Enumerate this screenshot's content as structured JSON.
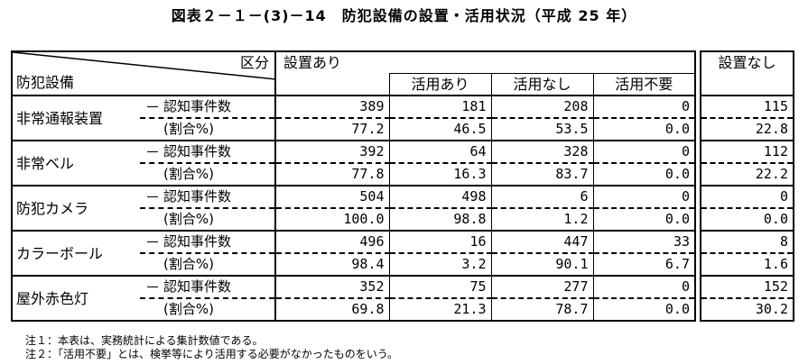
{
  "title": "図表２－１－(3)－14　防犯設備の設置・活用状況（平成 25 年）",
  "header": {
    "kubun": "区分",
    "equipment": "防犯設備",
    "installed": "設置あり",
    "used": "活用あり",
    "not_used": "活用なし",
    "unneeded": "活用不要",
    "not_installed": "設置なし"
  },
  "sub_labels": {
    "count": "認知事件数",
    "ratio": "(割合%)"
  },
  "rows": [
    {
      "name": "非常通報装置",
      "count": [
        "389",
        "181",
        "208",
        "0",
        "115"
      ],
      "ratio": [
        "77.2",
        "46.5",
        "53.5",
        "0.0",
        "22.8"
      ]
    },
    {
      "name": "非常ベル",
      "count": [
        "392",
        "64",
        "328",
        "0",
        "112"
      ],
      "ratio": [
        "77.8",
        "16.3",
        "83.7",
        "0.0",
        "22.2"
      ]
    },
    {
      "name": "防犯カメラ",
      "count": [
        "504",
        "498",
        "6",
        "0",
        "0"
      ],
      "ratio": [
        "100.0",
        "98.8",
        "1.2",
        "0.0",
        "0.0"
      ]
    },
    {
      "name": "カラーボール",
      "count": [
        "496",
        "16",
        "447",
        "33",
        "8"
      ],
      "ratio": [
        "98.4",
        "3.2",
        "90.1",
        "6.7",
        "1.6"
      ]
    },
    {
      "name": "屋外赤色灯",
      "count": [
        "352",
        "75",
        "277",
        "0",
        "152"
      ],
      "ratio": [
        "69.8",
        "21.3",
        "78.7",
        "0.0",
        "30.2"
      ]
    }
  ],
  "notes": [
    "注１：本表は、実務統計による集計数値である。",
    "注２：「活用不要」とは、検挙等により活用する必要がなかったものをいう。"
  ]
}
